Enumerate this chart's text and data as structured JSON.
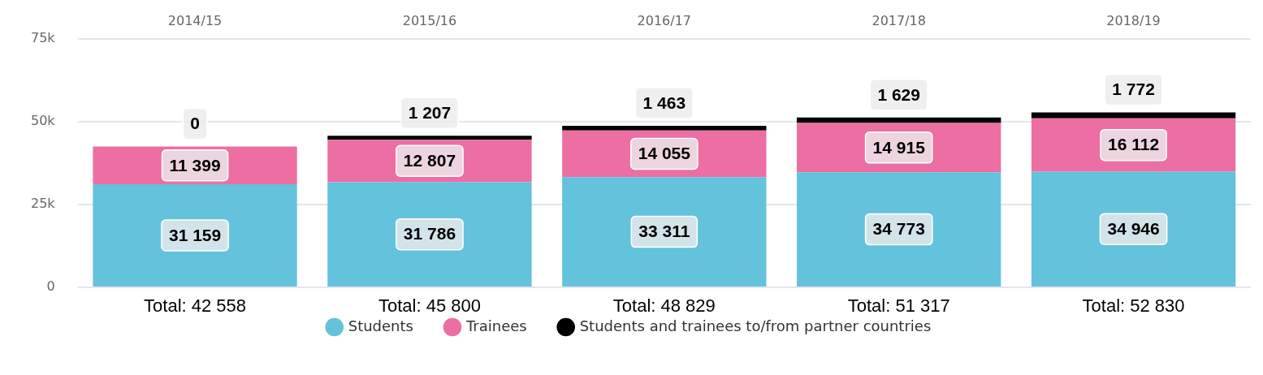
{
  "chart_data": {
    "type": "bar",
    "stacked": true,
    "categories": [
      "2014/15",
      "2015/16",
      "2016/17",
      "2017/18",
      "2018/19"
    ],
    "series": [
      {
        "name": "Students",
        "color": "#63c2dc",
        "values": [
          31159,
          31786,
          33311,
          34773,
          34946
        ],
        "value_labels": [
          "31 159",
          "31 786",
          "33 311",
          "34 773",
          "34 946"
        ]
      },
      {
        "name": "Trainees",
        "color": "#ec6ea3",
        "values": [
          11399,
          12807,
          14055,
          14915,
          16112
        ],
        "value_labels": [
          "11 399",
          "12 807",
          "14 055",
          "14 915",
          "16 112"
        ]
      },
      {
        "name": "Students and trainees to/from partner countries",
        "color": "#000000",
        "values": [
          0,
          1207,
          1463,
          1629,
          1772
        ],
        "value_labels": [
          "0",
          "1 207",
          "1 463",
          "1 629",
          "1 772"
        ]
      }
    ],
    "totals": [
      "Total: 42 558",
      "Total: 45 800",
      "Total: 48 829",
      "Total: 51 317",
      "Total: 52 830"
    ],
    "ylim": [
      0,
      75000
    ],
    "yticks": [
      0,
      {
        "value": 25000,
        "label": "25k"
      },
      {
        "value": 50000,
        "label": "50k"
      },
      {
        "value": 75000,
        "label": "75k"
      }
    ],
    "grid": "y",
    "legend": "bottom"
  }
}
